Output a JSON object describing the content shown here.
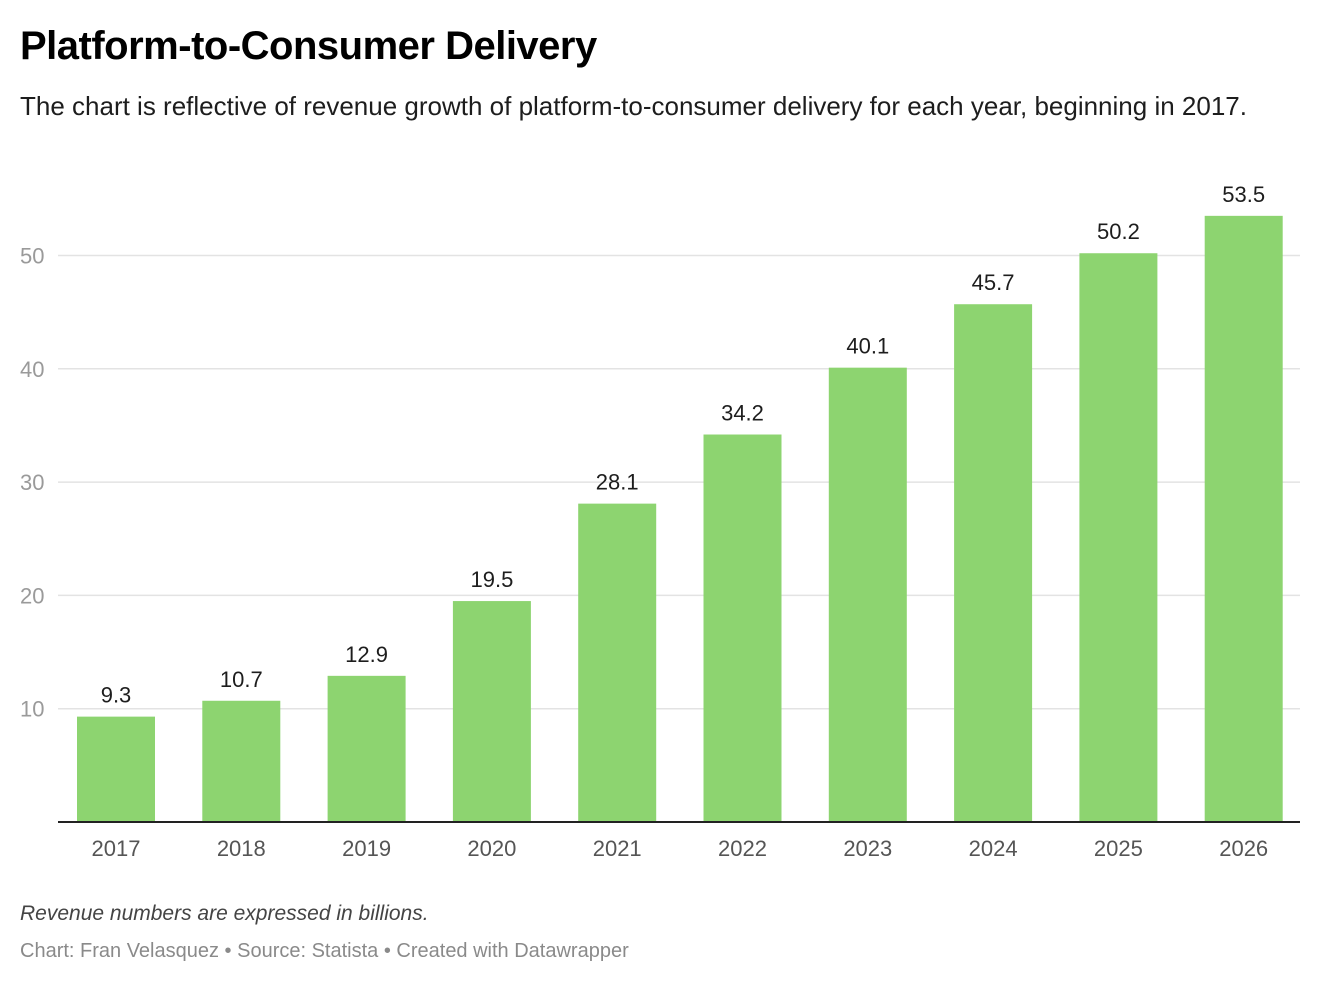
{
  "title": "Platform-to-Consumer Delivery",
  "subtitle": "The chart is reflective of revenue growth of platform-to-consumer delivery for each year, beginning in 2017.",
  "note": "Revenue numbers are expressed in billions.",
  "footer": "Chart: Fran Velasquez • Source: Statista • Created with Datawrapper",
  "colors": {
    "bar": "#8dd470",
    "grid": "#e3e3e3",
    "axis": "#222222"
  },
  "chart_data": {
    "type": "bar",
    "title": "Platform-to-Consumer Delivery",
    "categories": [
      "2017",
      "2018",
      "2019",
      "2020",
      "2021",
      "2022",
      "2023",
      "2024",
      "2025",
      "2026"
    ],
    "values": [
      9.3,
      10.7,
      12.9,
      19.5,
      28.1,
      34.2,
      40.1,
      45.7,
      50.2,
      53.5
    ],
    "value_labels": [
      "9.3",
      "10.7",
      "12.9",
      "19.5",
      "28.1",
      "34.2",
      "40.1",
      "45.7",
      "50.2",
      "53.5"
    ],
    "yticks": [
      "10",
      "20",
      "30",
      "40",
      "50"
    ],
    "ylim": [
      0,
      56
    ],
    "grid": true,
    "xlabel": "",
    "ylabel": ""
  }
}
